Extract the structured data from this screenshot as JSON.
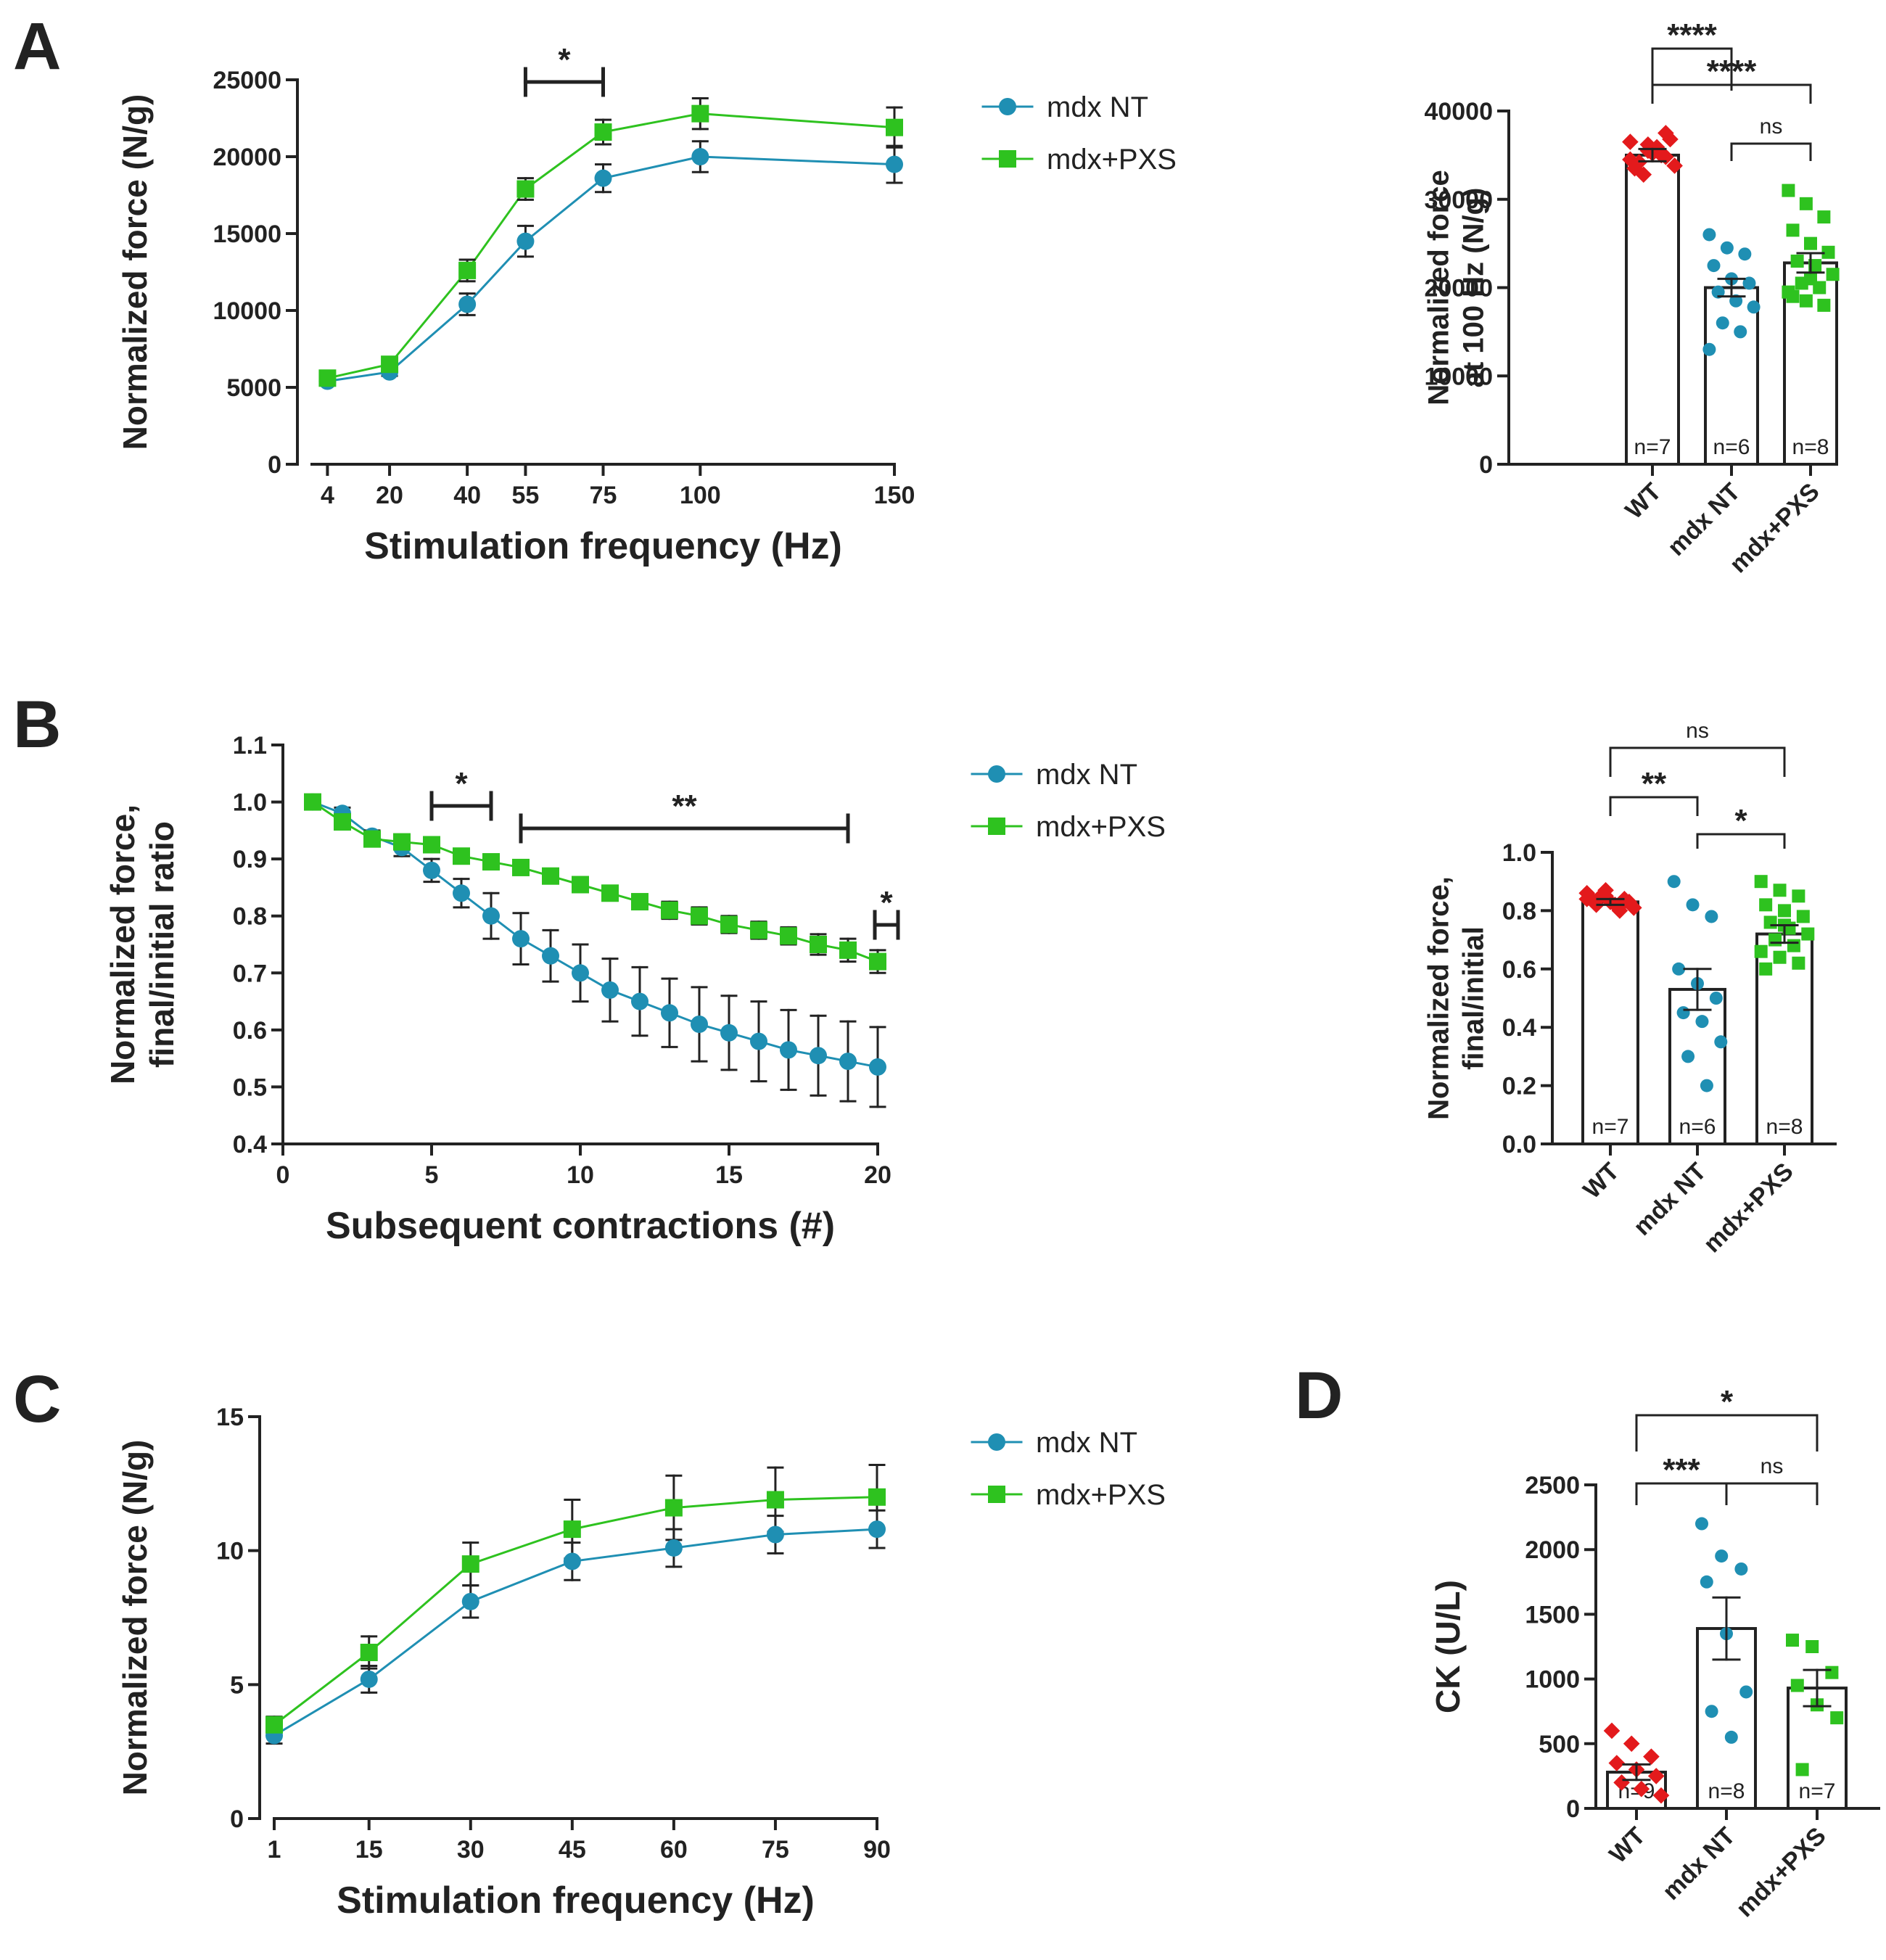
{
  "colors": {
    "mdx_nt": "#1f8fb3",
    "mdx_pxs": "#2ec21f",
    "wt": "#e31a1c",
    "axis": "#222222"
  },
  "legend": {
    "mdx_nt": "mdx NT",
    "mdx_pxs": "mdx+PXS"
  },
  "chart_data": [
    {
      "panel": "A",
      "type": "line",
      "title": "",
      "xlabel": "Stimulation frequency (Hz)",
      "ylabel": "Normalized force (N/g)",
      "x": [
        4,
        20,
        40,
        55,
        75,
        100,
        150
      ],
      "x_ticks": [
        4,
        20,
        40,
        55,
        75,
        100,
        150
      ],
      "xlim": [
        0,
        150
      ],
      "ylim": [
        0,
        25000
      ],
      "y_ticks": [
        0,
        5000,
        10000,
        15000,
        20000,
        25000
      ],
      "series": [
        {
          "name": "mdx NT",
          "values": [
            5400,
            6000,
            10400,
            14500,
            18600,
            20000,
            19500
          ],
          "errors": [
            200,
            250,
            700,
            1000,
            900,
            1000,
            1200
          ]
        },
        {
          "name": "mdx+PXS",
          "values": [
            5600,
            6500,
            12600,
            17900,
            21600,
            22800,
            21900
          ],
          "errors": [
            200,
            250,
            700,
            700,
            800,
            1000,
            1300
          ]
        }
      ],
      "annotations": [
        {
          "label": "*",
          "x_from": 55,
          "x_to": 75
        }
      ]
    },
    {
      "panel": "A",
      "type": "bar",
      "title": "",
      "xlabel": "",
      "ylabel": "Normalized force at 100 Hz (N/g)",
      "ylabel_lines": [
        "Normalized force",
        "at 100 Hz (N/g)"
      ],
      "categories": [
        "WT",
        "mdx NT",
        "mdx+PXS"
      ],
      "values": [
        35000,
        20000,
        22800
      ],
      "errors": [
        700,
        1000,
        1100
      ],
      "n_labels": [
        "n=7",
        "n=6",
        "n=8"
      ],
      "ylim": [
        0,
        40000
      ],
      "y_ticks": [
        0,
        10000,
        20000,
        30000,
        40000
      ],
      "points": [
        [
          36500,
          35500,
          34800,
          33500,
          35200,
          36800,
          34200,
          35900,
          33800,
          32800,
          35000,
          34500,
          36200,
          37500
        ],
        [
          26000,
          24500,
          23800,
          22500,
          21000,
          20500,
          19500,
          18500,
          17800,
          16000,
          15000,
          13000
        ],
        [
          31000,
          29500,
          28000,
          26500,
          25000,
          24000,
          23000,
          22500,
          21500,
          20500,
          20000,
          19500,
          18500,
          18000,
          19000,
          21000
        ]
      ],
      "comparisons": [
        {
          "label": "****",
          "from": "WT",
          "to": "mdx NT"
        },
        {
          "label": "****",
          "from": "WT",
          "to": "mdx+PXS"
        },
        {
          "label": "ns",
          "from": "mdx NT",
          "to": "mdx+PXS"
        }
      ]
    },
    {
      "panel": "B",
      "type": "line",
      "title": "",
      "xlabel": "Subsequent contractions (#)",
      "ylabel": "Normalized force, final/initial ratio",
      "ylabel_lines": [
        "Normalized force,",
        "final/initial ratio"
      ],
      "x": [
        1,
        2,
        3,
        4,
        5,
        6,
        7,
        8,
        9,
        10,
        11,
        12,
        13,
        14,
        15,
        16,
        17,
        18,
        19,
        20
      ],
      "x_ticks": [
        0,
        5,
        10,
        15,
        20
      ],
      "xlim": [
        0,
        20
      ],
      "ylim": [
        0.4,
        1.1
      ],
      "y_ticks": [
        0.4,
        0.5,
        0.6,
        0.7,
        0.8,
        0.9,
        1.0,
        1.1
      ],
      "series": [
        {
          "name": "mdx NT",
          "values": [
            1.0,
            0.98,
            0.94,
            0.92,
            0.88,
            0.84,
            0.8,
            0.76,
            0.73,
            0.7,
            0.67,
            0.65,
            0.63,
            0.61,
            0.595,
            0.58,
            0.565,
            0.555,
            0.545,
            0.535
          ],
          "errors": [
            0.005,
            0.01,
            0.01,
            0.015,
            0.02,
            0.025,
            0.04,
            0.045,
            0.045,
            0.05,
            0.055,
            0.06,
            0.06,
            0.065,
            0.065,
            0.07,
            0.07,
            0.07,
            0.07,
            0.07
          ]
        },
        {
          "name": "mdx+PXS",
          "values": [
            1.0,
            0.965,
            0.935,
            0.93,
            0.925,
            0.905,
            0.895,
            0.885,
            0.87,
            0.855,
            0.84,
            0.825,
            0.81,
            0.8,
            0.785,
            0.775,
            0.765,
            0.75,
            0.74,
            0.72
          ],
          "errors": [
            0.005,
            0.005,
            0.005,
            0.008,
            0.01,
            0.01,
            0.01,
            0.01,
            0.01,
            0.01,
            0.012,
            0.012,
            0.015,
            0.015,
            0.015,
            0.015,
            0.015,
            0.018,
            0.02,
            0.02
          ]
        }
      ],
      "annotations": [
        {
          "label": "*",
          "x_from": 5,
          "x_to": 7
        },
        {
          "label": "**",
          "x_from": 8,
          "x_to": 19
        },
        {
          "label": "*",
          "x_from": 20,
          "x_to": 20
        }
      ]
    },
    {
      "panel": "B",
      "type": "bar",
      "title": "",
      "xlabel": "",
      "ylabel": "Normalized force, final/initial",
      "ylabel_lines": [
        "Normalized force,",
        "final/initial"
      ],
      "categories": [
        "WT",
        "mdx NT",
        "mdx+PXS"
      ],
      "values": [
        0.83,
        0.53,
        0.72
      ],
      "errors": [
        0.01,
        0.07,
        0.03
      ],
      "n_labels": [
        "n=7",
        "n=6",
        "n=8"
      ],
      "ylim": [
        0,
        1.0
      ],
      "y_ticks": [
        0.0,
        0.2,
        0.4,
        0.6,
        0.8,
        1.0
      ],
      "points": [
        [
          0.86,
          0.85,
          0.84,
          0.84,
          0.83,
          0.83,
          0.82,
          0.82,
          0.81,
          0.85,
          0.8,
          0.84,
          0.87,
          0.83
        ],
        [
          0.9,
          0.82,
          0.78,
          0.6,
          0.55,
          0.5,
          0.45,
          0.42,
          0.35,
          0.3,
          0.2
        ],
        [
          0.9,
          0.87,
          0.85,
          0.82,
          0.8,
          0.78,
          0.76,
          0.74,
          0.72,
          0.7,
          0.68,
          0.66,
          0.64,
          0.62,
          0.6,
          0.75
        ]
      ],
      "comparisons": [
        {
          "label": "ns",
          "from": "WT",
          "to": "mdx+PXS"
        },
        {
          "label": "**",
          "from": "WT",
          "to": "mdx NT"
        },
        {
          "label": "*",
          "from": "mdx NT",
          "to": "mdx+PXS"
        }
      ]
    },
    {
      "panel": "C",
      "type": "line",
      "title": "",
      "xlabel": "Stimulation frequency (Hz)",
      "ylabel": "Normalized force (N/g)",
      "x": [
        1,
        15,
        30,
        45,
        60,
        75,
        90
      ],
      "x_ticks": [
        1,
        15,
        30,
        45,
        60,
        75,
        90
      ],
      "xlim": [
        1,
        90
      ],
      "ylim": [
        0,
        15
      ],
      "y_ticks": [
        0,
        5,
        10,
        15
      ],
      "series": [
        {
          "name": "mdx NT",
          "values": [
            3.1,
            5.2,
            8.1,
            9.6,
            10.1,
            10.6,
            10.8
          ],
          "errors": [
            0.3,
            0.5,
            0.6,
            0.7,
            0.7,
            0.7,
            0.7
          ]
        },
        {
          "name": "mdx+PXS",
          "values": [
            3.5,
            6.2,
            9.5,
            10.8,
            11.6,
            11.9,
            12.0
          ],
          "errors": [
            0.3,
            0.6,
            0.8,
            1.1,
            1.2,
            1.2,
            1.2
          ]
        }
      ]
    },
    {
      "panel": "D",
      "type": "bar",
      "title": "",
      "xlabel": "",
      "ylabel": "CK (U/L)",
      "categories": [
        "WT",
        "mdx NT",
        "mdx+PXS"
      ],
      "values": [
        280,
        1390,
        930
      ],
      "errors": [
        60,
        240,
        140
      ],
      "n_labels": [
        "n=9",
        "n=8",
        "n=7"
      ],
      "ylim": [
        0,
        2500
      ],
      "y_ticks": [
        0,
        500,
        1000,
        1500,
        2000,
        2500
      ],
      "points": [
        [
          600,
          500,
          400,
          350,
          300,
          250,
          200,
          150,
          100
        ],
        [
          2200,
          1950,
          1850,
          1750,
          1350,
          900,
          750,
          550
        ],
        [
          1300,
          1250,
          1050,
          950,
          800,
          700,
          300
        ]
      ],
      "comparisons": [
        {
          "label": "*",
          "from": "WT",
          "to": "mdx+PXS"
        },
        {
          "label": "***",
          "from": "WT",
          "to": "mdx NT"
        },
        {
          "label": "ns",
          "from": "mdx NT",
          "to": "mdx+PXS"
        }
      ]
    }
  ],
  "panels": {
    "A": "A",
    "B": "B",
    "C": "C",
    "D": "D"
  }
}
